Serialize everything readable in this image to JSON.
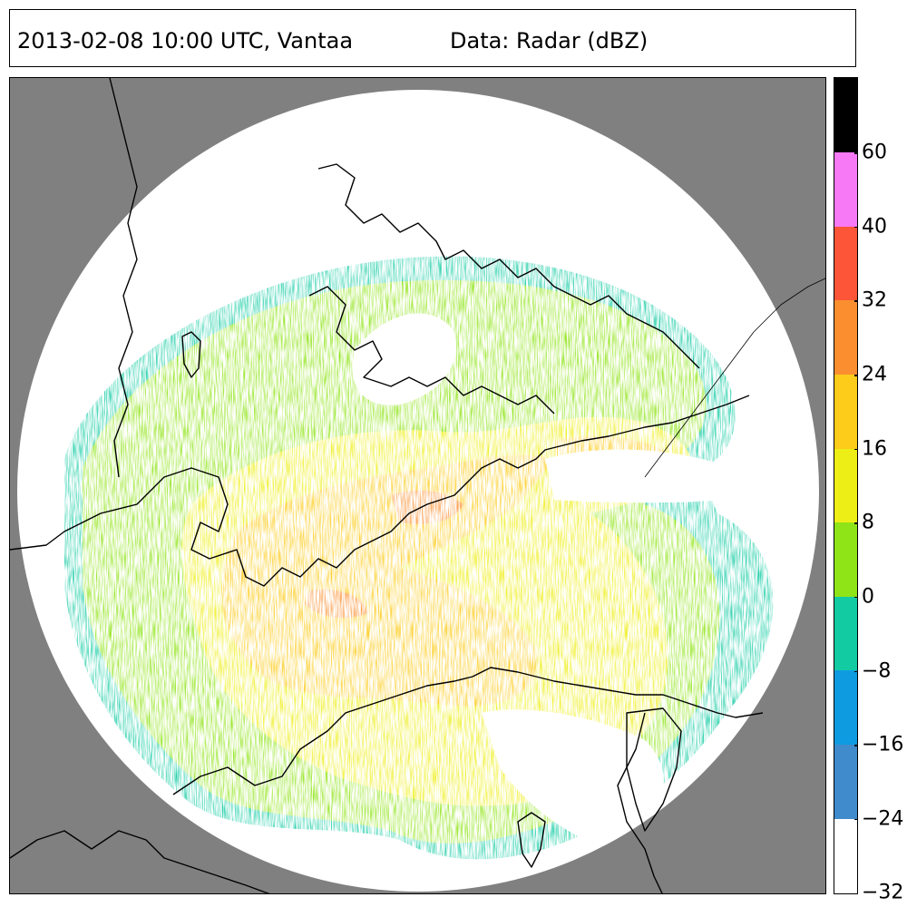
{
  "title": {
    "left": "2013-02-08 10:00 UTC, Vantaa",
    "right": "Data: Radar (dBZ)"
  },
  "map": {
    "background_color": "#808080",
    "coverage_color": "#ffffff",
    "coastline_color": "#000000"
  },
  "colorbar": {
    "bins": [
      {
        "from": -32,
        "to": -24,
        "color": "#ffffff"
      },
      {
        "from": -24,
        "to": -16,
        "color": "#3f8bcb"
      },
      {
        "from": -16,
        "to": -8,
        "color": "#0f9be0"
      },
      {
        "from": -8,
        "to": 0,
        "color": "#13cba3"
      },
      {
        "from": 0,
        "to": 8,
        "color": "#8fe417"
      },
      {
        "from": 8,
        "to": 16,
        "color": "#eeee17"
      },
      {
        "from": 16,
        "to": 24,
        "color": "#fdcb1a"
      },
      {
        "from": 24,
        "to": 32,
        "color": "#fb8f30"
      },
      {
        "from": 32,
        "to": 40,
        "color": "#fd5537"
      },
      {
        "from": 40,
        "to": 60,
        "color": "#f879f6"
      },
      {
        "from": 60,
        "to": 80,
        "color": "#000000"
      }
    ],
    "tick_labels": [
      "−32",
      "−24",
      "−16",
      "−8",
      "0",
      "8",
      "16",
      "24",
      "32",
      "40",
      "60"
    ]
  }
}
